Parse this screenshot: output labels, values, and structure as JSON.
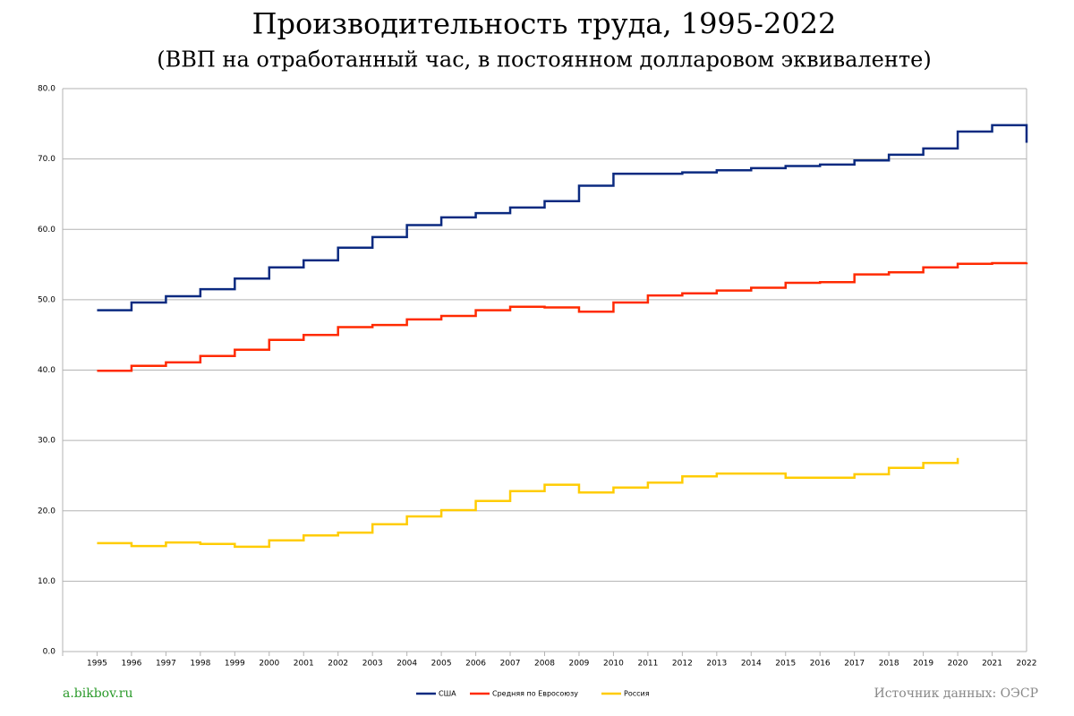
{
  "chart_data": {
    "type": "step-line",
    "title": "Производительность труда, 1995-2022",
    "subtitle": "(ВВП на отработанный час, в постоянном долларовом эквиваленте)",
    "categories": [
      "1995",
      "1996",
      "1997",
      "1998",
      "1999",
      "2000",
      "2001",
      "2002",
      "2003",
      "2004",
      "2005",
      "2006",
      "2007",
      "2008",
      "2009",
      "2010",
      "2011",
      "2012",
      "2013",
      "2014",
      "2015",
      "2016",
      "2017",
      "2018",
      "2019",
      "2020",
      "2021",
      "2022"
    ],
    "series": [
      {
        "name": "США",
        "color": "#0b2a80",
        "values": [
          48.5,
          49.6,
          50.5,
          51.5,
          53.0,
          54.6,
          55.6,
          57.4,
          58.9,
          60.6,
          61.7,
          62.3,
          63.1,
          64.0,
          66.2,
          67.9,
          67.9,
          68.1,
          68.4,
          68.7,
          69.0,
          69.2,
          69.8,
          70.6,
          71.5,
          73.9,
          74.8,
          72.3
        ]
      },
      {
        "name": "Средняя по Евросоюзу",
        "color": "#ff2a00",
        "values": [
          39.9,
          40.6,
          41.1,
          42.0,
          42.9,
          44.3,
          45.0,
          46.1,
          46.4,
          47.2,
          47.7,
          48.5,
          49.0,
          48.9,
          48.3,
          49.6,
          50.6,
          50.9,
          51.3,
          51.7,
          52.4,
          52.5,
          53.6,
          53.9,
          54.6,
          55.1,
          55.2,
          55.3
        ]
      },
      {
        "name": "Россия",
        "color": "#ffcc00",
        "values": [
          15.4,
          15.0,
          15.5,
          15.3,
          14.9,
          15.8,
          16.5,
          16.9,
          18.1,
          19.2,
          20.1,
          21.4,
          22.8,
          23.7,
          22.6,
          23.3,
          24.0,
          24.9,
          25.3,
          25.3,
          24.7,
          24.7,
          25.2,
          26.1,
          26.8,
          27.5,
          null,
          null
        ]
      }
    ],
    "ylim": [
      0,
      80
    ],
    "yticks": [
      {
        "value": 0,
        "label": "0.0"
      },
      {
        "value": 10,
        "label": "10.0"
      },
      {
        "value": 20,
        "label": "20.0"
      },
      {
        "value": 30,
        "label": "30.0"
      },
      {
        "value": 40,
        "label": "40.0"
      },
      {
        "value": 50,
        "label": "50.0"
      },
      {
        "value": 60,
        "label": "60.0"
      },
      {
        "value": 70,
        "label": "70.0"
      },
      {
        "value": 80,
        "label": "80.0"
      }
    ],
    "grid": true,
    "legend": "bottom"
  },
  "footer": {
    "left": "a.bikbov.ru",
    "right": "Источник данных: ОЭСР"
  }
}
